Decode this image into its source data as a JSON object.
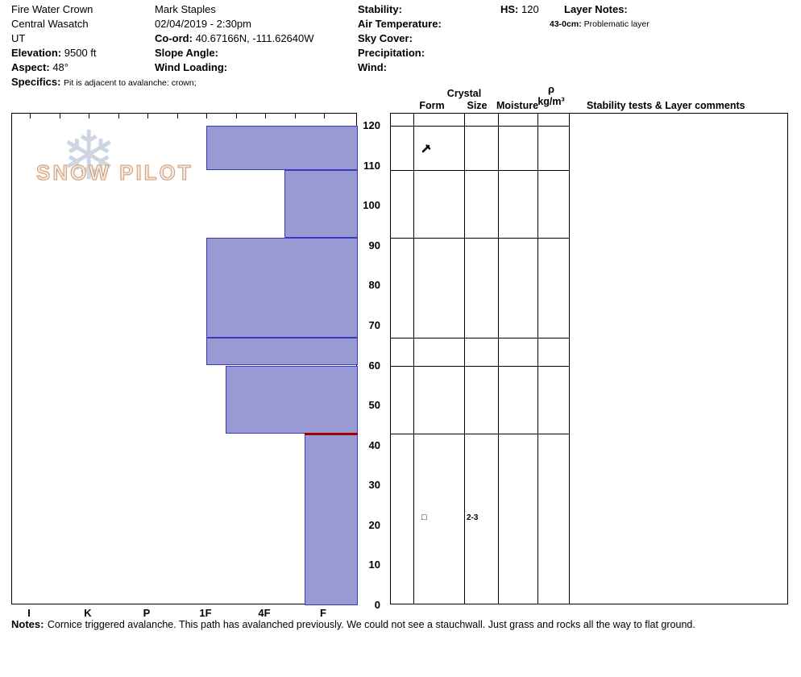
{
  "header": {
    "pit_name": "Fire Water Crown",
    "region": "Central Wasatch",
    "state": "UT",
    "elevation": {
      "label": "Elevation:",
      "value": "9500 ft"
    },
    "aspect": {
      "label": "Aspect:",
      "value": "48°"
    },
    "specifics": {
      "label": "Specifics:",
      "value": "Pit is adjacent to avalanche: crown;"
    },
    "observer": "Mark Staples",
    "datetime": "02/04/2019 - 2:30pm",
    "coord": {
      "label": "Co-ord:",
      "value": "40.67166N, -111.62640W"
    },
    "slope_angle": {
      "label": "Slope Angle:",
      "value": ""
    },
    "wind_loading": {
      "label": "Wind Loading:",
      "value": ""
    },
    "stability": {
      "label": "Stability:",
      "value": ""
    },
    "air_temperature": {
      "label": "Air Temperature:",
      "value": ""
    },
    "sky_cover": {
      "label": "Sky Cover:",
      "value": ""
    },
    "precipitation": {
      "label": "Precipitation:",
      "value": ""
    },
    "wind": {
      "label": "Wind:",
      "value": ""
    },
    "hs": {
      "label": "HS:",
      "value": "120"
    },
    "layer_notes": {
      "label": "Layer Notes:",
      "items": [
        {
          "range": "43-0cm:",
          "text": "Problematic layer"
        }
      ]
    }
  },
  "logo": {
    "text": "SNOW PILOT",
    "snowflake": "❄"
  },
  "table_headers": {
    "crystal": "Crystal",
    "form": "Form",
    "size": "Size",
    "moisture": "Moisture",
    "rho": "ρ",
    "rho_units": "kg/m³",
    "stability_comments": "Stability tests & Layer comments"
  },
  "chart_data": {
    "type": "bar",
    "profile": "snow-pit-hardness",
    "hardness_categories": [
      "I",
      "K",
      "P",
      "1F",
      "4F",
      "F"
    ],
    "depth_axis": {
      "min": 0,
      "max": 120,
      "tick_interval": 10,
      "unit": "cm"
    },
    "hs_cm": 120,
    "bar_fill": "#9a9ad2",
    "bar_border": "#3a3ac0",
    "problem_line_color": "#a00000",
    "layers": [
      {
        "top_cm": 120,
        "bottom_cm": 109,
        "hardness": "1F",
        "grain_form": "decomposing-fragments"
      },
      {
        "top_cm": 109,
        "bottom_cm": 92,
        "hardness": "4F-"
      },
      {
        "top_cm": 92,
        "bottom_cm": 67,
        "hardness": "1F"
      },
      {
        "top_cm": 67,
        "bottom_cm": 60,
        "hardness": "1F"
      },
      {
        "top_cm": 60,
        "bottom_cm": 43,
        "hardness": "1F-"
      },
      {
        "top_cm": 43,
        "bottom_cm": 0,
        "hardness": "F+",
        "grain_form": "faceted-crystals",
        "grain_size_mm": "2-3",
        "problematic": true
      }
    ]
  },
  "notes": {
    "label": "Notes:",
    "text": "Cornice triggered avalanche. This path has avalanched previously. We could not see a stauchwall. Just grass and rocks all the way to flat ground."
  }
}
